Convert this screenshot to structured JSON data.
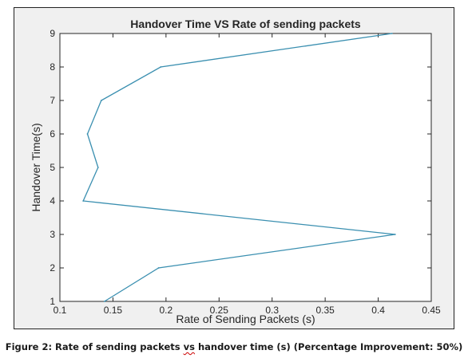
{
  "chart_data": {
    "type": "line",
    "title": "Handover Time VS Rate of sending packets",
    "xlabel": "Rate of Sending Packets (s)",
    "ylabel": "Handover Time(s)",
    "xlim": [
      0.1,
      0.45
    ],
    "ylim": [
      1,
      9
    ],
    "xticks": [
      "0.1",
      "0.15",
      "0.2",
      "0.25",
      "0.3",
      "0.35",
      "0.4",
      "0.45"
    ],
    "yticks": [
      "1",
      "2",
      "3",
      "4",
      "5",
      "6",
      "7",
      "8",
      "9"
    ],
    "grid": false,
    "line_color": "#3a8fb0",
    "series": [
      {
        "points": [
          {
            "x": 0.142,
            "y": 1
          },
          {
            "x": 0.193,
            "y": 2
          },
          {
            "x": 0.416,
            "y": 3
          },
          {
            "x": 0.122,
            "y": 4
          },
          {
            "x": 0.136,
            "y": 5
          },
          {
            "x": 0.126,
            "y": 6
          },
          {
            "x": 0.139,
            "y": 7
          },
          {
            "x": 0.195,
            "y": 8
          },
          {
            "x": 0.413,
            "y": 9
          }
        ]
      }
    ]
  },
  "caption": {
    "prefix": "Figure 2: Rate of sending packets ",
    "vs": "vs",
    "suffix": " handover time (s) (Percentage Improvement: 50%)"
  }
}
